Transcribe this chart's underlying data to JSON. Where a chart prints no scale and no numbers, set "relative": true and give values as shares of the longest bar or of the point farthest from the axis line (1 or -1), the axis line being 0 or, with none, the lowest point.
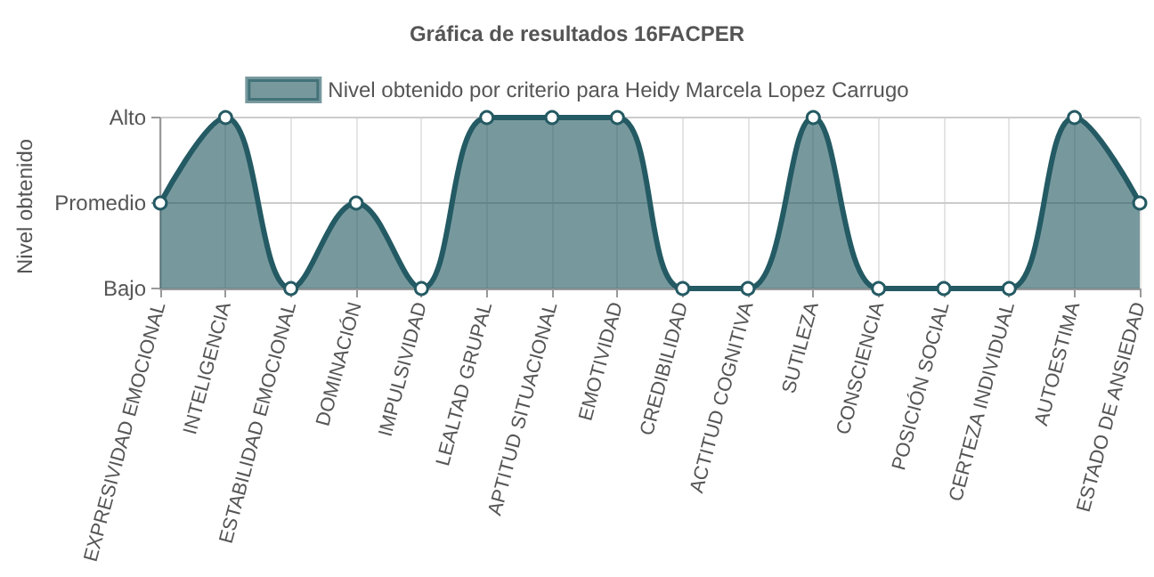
{
  "chart_data": {
    "type": "area",
    "title": "Gráfica de resultados 16FACPER",
    "ylabel": "Nivel obtenido",
    "relative": true,
    "categories": [
      "EXPRESIVIDAD EMOCIONAL",
      "INTELIGENCIA",
      "ESTABILIDAD EMOCIONAL",
      "DOMINACIÓN",
      "IMPULSIVIDAD",
      "LEALTAD GRUPAL",
      "APTITUD SITUACIONAL",
      "EMOTIVIDAD",
      "CREDIBILIDAD",
      "ACTITUD COGNITIVA",
      "SUTILEZA",
      "CONSCIENCIA",
      "POSICIÓN SOCIAL",
      "CERTEZA INDIVIDUAL",
      "AUTOESTIMA",
      "ESTADO DE ANSIEDAD"
    ],
    "series": [
      {
        "name": "Nivel obtenido por criterio para Heidy Marcela Lopez Carrugo",
        "color": "#245a63",
        "values": [
          0.5,
          1,
          0,
          0.5,
          0,
          1,
          1,
          1,
          0,
          0,
          1,
          0,
          0,
          0,
          1,
          0.5
        ]
      }
    ],
    "annotations": [
      "Bajo",
      "Promedio",
      "Alto"
    ],
    "grid": true,
    "legend": "top",
    "marker": "circle",
    "line_style": "solid"
  }
}
